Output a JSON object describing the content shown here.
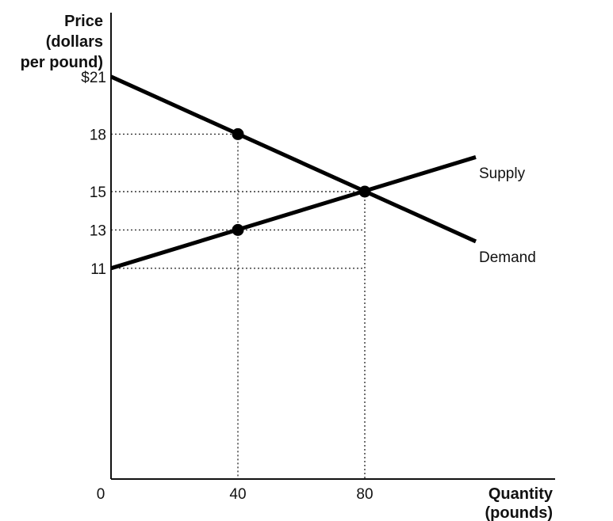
{
  "chart_data": {
    "type": "line",
    "ylabel_lines": [
      "Price",
      "(dollars",
      "per pound)"
    ],
    "xlabel_lines": [
      "Quantity",
      "(pounds)"
    ],
    "y_ticks": [
      {
        "value": 21,
        "label": "$21"
      },
      {
        "value": 18,
        "label": "18"
      },
      {
        "value": 15,
        "label": "15"
      },
      {
        "value": 13,
        "label": "13"
      },
      {
        "value": 11,
        "label": "11"
      }
    ],
    "x_ticks": [
      {
        "value": 0,
        "label": "0"
      },
      {
        "value": 40,
        "label": "40"
      },
      {
        "value": 80,
        "label": "80"
      }
    ],
    "xlim": [
      0,
      140
    ],
    "ylim": [
      0,
      25
    ],
    "series": [
      {
        "name": "Supply",
        "points": [
          [
            0,
            11
          ],
          [
            115,
            16.8
          ]
        ]
      },
      {
        "name": "Demand",
        "points": [
          [
            0,
            21
          ],
          [
            115,
            12.4
          ]
        ]
      }
    ],
    "markers": [
      [
        40,
        18
      ],
      [
        80,
        15
      ],
      [
        40,
        13
      ]
    ],
    "guides": [
      {
        "x": 40,
        "y": 18
      },
      {
        "x": 80,
        "y": 15
      },
      {
        "x": 80,
        "y": 13
      },
      {
        "x": 80,
        "y": 11
      }
    ],
    "grid": false
  }
}
